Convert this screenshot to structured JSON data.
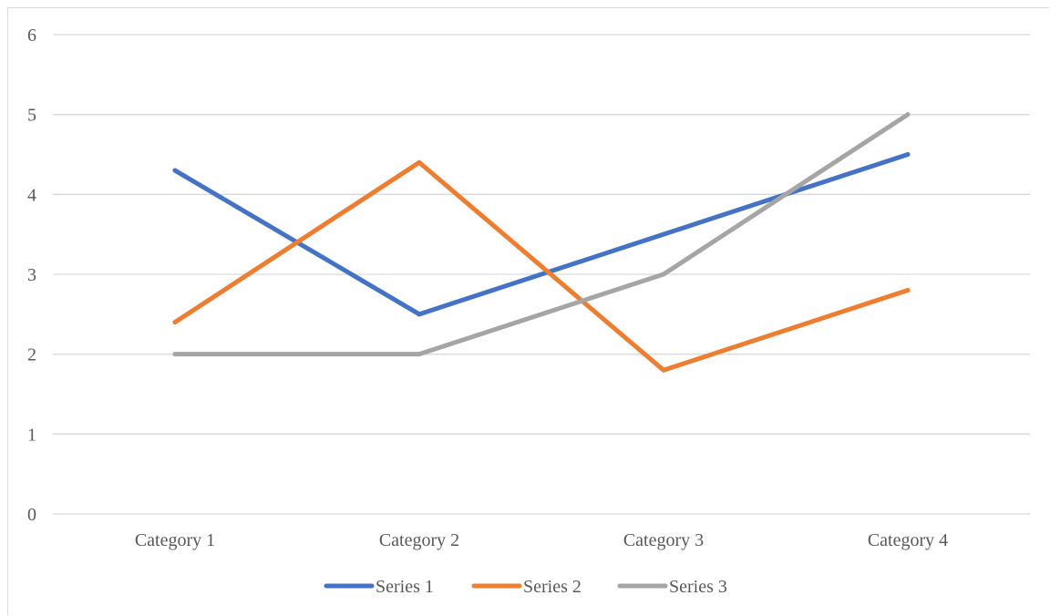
{
  "chart_data": {
    "type": "line",
    "categories": [
      "Category 1",
      "Category 2",
      "Category 3",
      "Category 4"
    ],
    "series": [
      {
        "name": "Series 1",
        "values": [
          4.3,
          2.5,
          3.5,
          4.5
        ],
        "color": "#4472c4"
      },
      {
        "name": "Series 2",
        "values": [
          2.4,
          4.4,
          1.8,
          2.8
        ],
        "color": "#ed7d31"
      },
      {
        "name": "Series 3",
        "values": [
          2,
          2,
          3,
          5
        ],
        "color": "#a5a5a5"
      }
    ],
    "yticks": [
      "0",
      "1",
      "2",
      "3",
      "4",
      "5",
      "6"
    ],
    "ylim": [
      0,
      6
    ],
    "grid": true,
    "legend_position": "bottom",
    "gridline_color": "#d9d9d9"
  }
}
